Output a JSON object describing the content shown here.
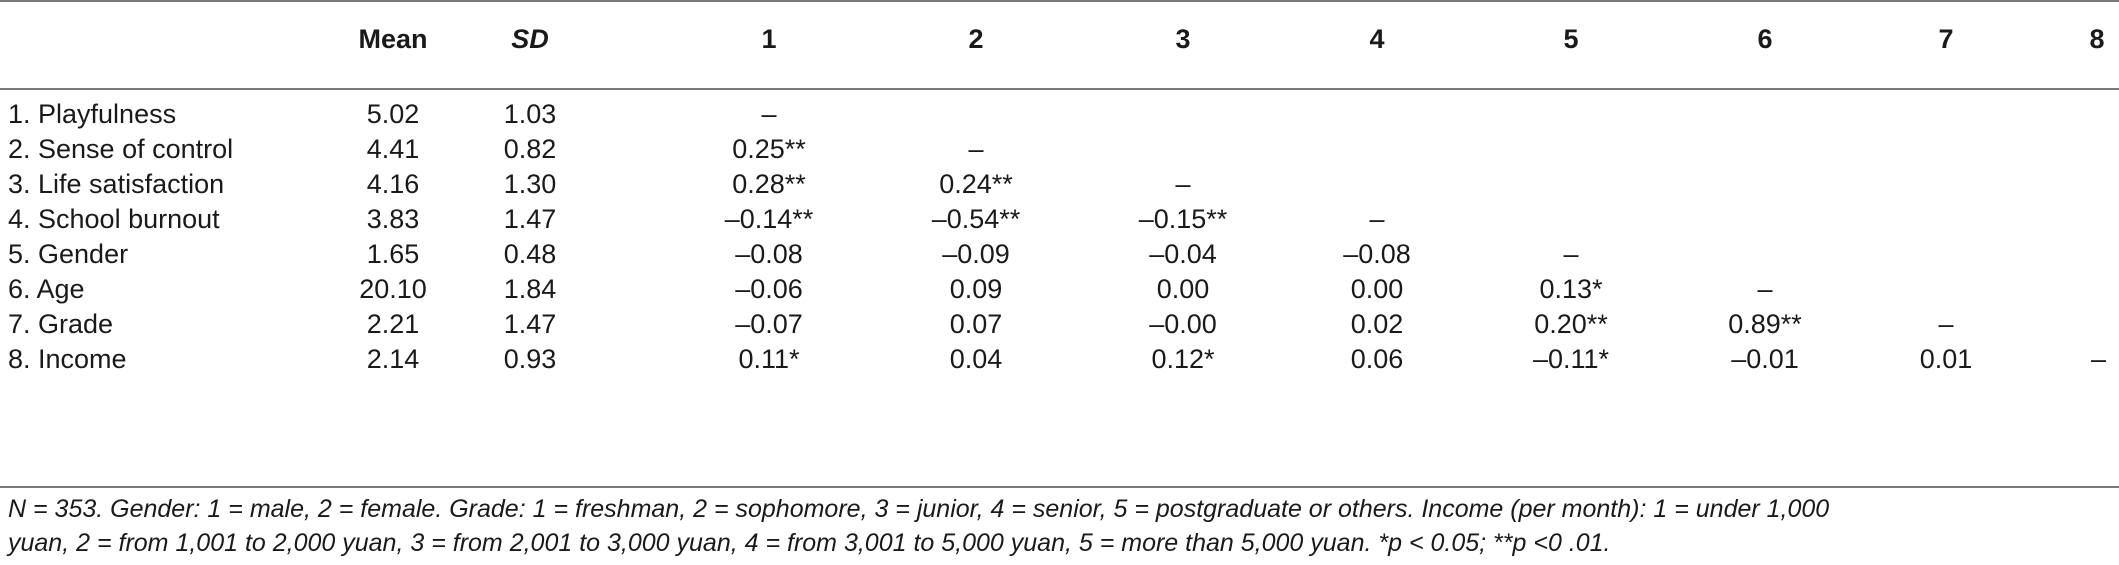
{
  "table": {
    "headers": [
      "",
      "Mean",
      "SD",
      "1",
      "2",
      "3",
      "4",
      "5",
      "6",
      "7",
      "8"
    ],
    "rows": [
      {
        "label": "1. Playfulness",
        "mean": "5.02",
        "sd": "1.03",
        "cells": [
          "–",
          "",
          "",
          "",
          "",
          "",
          "",
          ""
        ]
      },
      {
        "label": "2. Sense of control",
        "mean": "4.41",
        "sd": "0.82",
        "cells": [
          "0.25**",
          "–",
          "",
          "",
          "",
          "",
          "",
          ""
        ]
      },
      {
        "label": "3. Life satisfaction",
        "mean": "4.16",
        "sd": "1.30",
        "cells": [
          "0.28**",
          "0.24**",
          "–",
          "",
          "",
          "",
          "",
          ""
        ]
      },
      {
        "label": "4. School burnout",
        "mean": "3.83",
        "sd": "1.47",
        "cells": [
          "–0.14**",
          "–0.54**",
          "–0.15**",
          "–",
          "",
          "",
          "",
          ""
        ]
      },
      {
        "label": "5. Gender",
        "mean": "1.65",
        "sd": "0.48",
        "cells": [
          "–0.08",
          "–0.09",
          "–0.04",
          "–0.08",
          "–",
          "",
          "",
          ""
        ]
      },
      {
        "label": "6. Age",
        "mean": "20.10",
        "sd": "1.84",
        "cells": [
          "–0.06",
          "0.09",
          "0.00",
          "0.00",
          "0.13*",
          "–",
          "",
          ""
        ]
      },
      {
        "label": "7. Grade",
        "mean": "2.21",
        "sd": "1.47",
        "cells": [
          "–0.07",
          "0.07",
          "–0.00",
          "0.02",
          "0.20**",
          "0.89**",
          "–",
          ""
        ]
      },
      {
        "label": "8. Income",
        "mean": "2.14",
        "sd": "0.93",
        "cells": [
          "0.11*",
          "0.04",
          "0.12*",
          "0.06",
          "–0.11*",
          "–0.01",
          "0.01",
          "–"
        ]
      }
    ]
  },
  "note": {
    "line1": "N = 353. Gender: 1 = male, 2 = female. Grade: 1 = freshman, 2 = sophomore, 3 = junior, 4 = senior, 5 =  postgraduate or others. Income (per month): 1 = under 1,000",
    "line2": "yuan, 2 = from 1,001 to 2,000 yuan, 3 = from 2,001 to 3,000 yuan, 4 = from 3,001 to 5,000 yuan, 5 = more than 5,000 yuan. *p < 0.05; **p <0 .01."
  }
}
